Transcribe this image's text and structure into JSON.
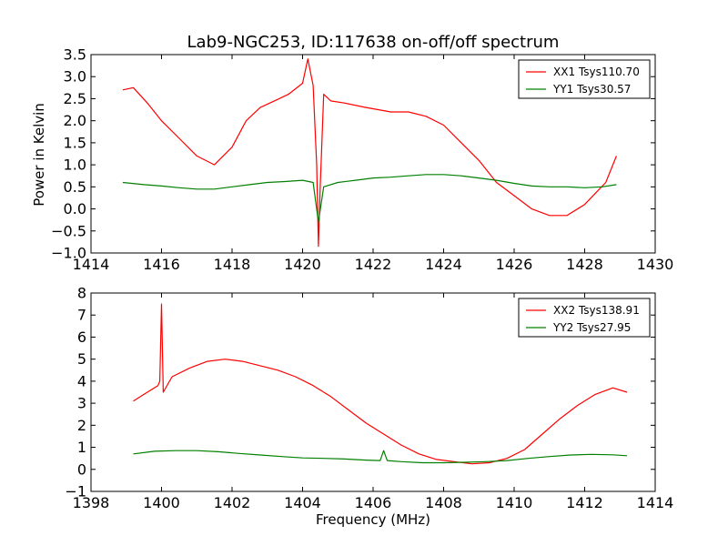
{
  "chart_data": [
    {
      "type": "line",
      "title": "Lab9-NGC253, ID:117638 on-off/off spectrum",
      "xlabel": "",
      "ylabel": "Power in Kelvin",
      "xlim": [
        1414,
        1430
      ],
      "ylim": [
        -1.0,
        3.5
      ],
      "xticks": [
        1414,
        1416,
        1418,
        1420,
        1422,
        1424,
        1426,
        1428,
        1430
      ],
      "xtick_labels": [
        "1414",
        "1416",
        "1418",
        "1420",
        "1422",
        "1424",
        "1426",
        "1428",
        "1430"
      ],
      "yticks": [
        -1.0,
        -0.5,
        0.0,
        0.5,
        1.0,
        1.5,
        2.0,
        2.5,
        3.0,
        3.5
      ],
      "ytick_labels": [
        "−1.0",
        "−0.5",
        "0.0",
        "0.5",
        "1.0",
        "1.5",
        "2.0",
        "2.5",
        "3.0",
        "3.5"
      ],
      "grid": false,
      "legend_position": "top-right",
      "series": [
        {
          "name": "XX1 Tsys110.70",
          "color": "#ff0000",
          "x": [
            1414.9,
            1415.2,
            1415.6,
            1416.0,
            1416.5,
            1417.0,
            1417.5,
            1418.0,
            1418.4,
            1418.8,
            1419.2,
            1419.6,
            1420.0,
            1420.15,
            1420.3,
            1420.4,
            1420.45,
            1420.5,
            1420.6,
            1420.8,
            1421.2,
            1421.8,
            1422.5,
            1423.0,
            1423.5,
            1424.0,
            1424.5,
            1425.0,
            1425.5,
            1426.0,
            1426.5,
            1427.0,
            1427.5,
            1428.0,
            1428.3,
            1428.6,
            1428.9
          ],
          "y": [
            2.7,
            2.75,
            2.4,
            2.0,
            1.6,
            1.2,
            1.0,
            1.4,
            2.0,
            2.3,
            2.45,
            2.6,
            2.85,
            3.4,
            2.8,
            1.0,
            -0.85,
            0.5,
            2.6,
            2.45,
            2.4,
            2.3,
            2.2,
            2.2,
            2.1,
            1.9,
            1.5,
            1.1,
            0.6,
            0.3,
            0.0,
            -0.15,
            -0.15,
            0.1,
            0.35,
            0.6,
            1.2
          ]
        },
        {
          "name": "YY1 Tsys30.57",
          "color": "#008000",
          "x": [
            1414.9,
            1415.5,
            1416.0,
            1416.5,
            1417.0,
            1417.5,
            1418.0,
            1418.5,
            1419.0,
            1419.5,
            1420.0,
            1420.3,
            1420.45,
            1420.6,
            1421.0,
            1421.5,
            1422.0,
            1422.5,
            1423.0,
            1423.5,
            1424.0,
            1424.5,
            1425.0,
            1425.5,
            1426.0,
            1426.5,
            1427.0,
            1427.5,
            1428.0,
            1428.5,
            1428.9
          ],
          "y": [
            0.6,
            0.55,
            0.52,
            0.48,
            0.45,
            0.45,
            0.5,
            0.55,
            0.6,
            0.62,
            0.65,
            0.6,
            -0.3,
            0.5,
            0.6,
            0.65,
            0.7,
            0.72,
            0.75,
            0.78,
            0.78,
            0.75,
            0.7,
            0.65,
            0.58,
            0.52,
            0.5,
            0.5,
            0.48,
            0.5,
            0.55
          ]
        }
      ]
    },
    {
      "type": "line",
      "title": "",
      "xlabel": "Frequency (MHz)",
      "ylabel": "",
      "xlim": [
        1398,
        1414
      ],
      "ylim": [
        -1,
        8
      ],
      "xticks": [
        1398,
        1400,
        1402,
        1404,
        1406,
        1408,
        1410,
        1412,
        1414
      ],
      "xtick_labels": [
        "1398",
        "1400",
        "1402",
        "1404",
        "1406",
        "1408",
        "1410",
        "1412",
        "1414"
      ],
      "yticks": [
        -1,
        0,
        1,
        2,
        3,
        4,
        5,
        6,
        7,
        8
      ],
      "ytick_labels": [
        "−1",
        "0",
        "1",
        "2",
        "3",
        "4",
        "5",
        "6",
        "7",
        "8"
      ],
      "grid": false,
      "legend_position": "top-right",
      "series": [
        {
          "name": "XX2 Tsys138.91",
          "color": "#ff0000",
          "x": [
            1399.2,
            1399.5,
            1399.9,
            1399.95,
            1400.0,
            1400.05,
            1400.3,
            1400.8,
            1401.3,
            1401.8,
            1402.3,
            1402.8,
            1403.3,
            1403.8,
            1404.3,
            1404.8,
            1405.3,
            1405.8,
            1406.3,
            1406.8,
            1407.3,
            1407.8,
            1408.3,
            1408.8,
            1409.3,
            1409.8,
            1410.3,
            1410.8,
            1411.3,
            1411.8,
            1412.3,
            1412.8,
            1413.2
          ],
          "y": [
            3.1,
            3.4,
            3.8,
            4.0,
            7.5,
            3.5,
            4.2,
            4.6,
            4.9,
            5.0,
            4.9,
            4.7,
            4.5,
            4.2,
            3.8,
            3.3,
            2.7,
            2.1,
            1.6,
            1.1,
            0.7,
            0.45,
            0.35,
            0.25,
            0.3,
            0.5,
            0.9,
            1.6,
            2.3,
            2.9,
            3.4,
            3.7,
            3.5
          ]
        },
        {
          "name": "YY2 Tsys27.95",
          "color": "#008000",
          "x": [
            1399.2,
            1399.8,
            1400.4,
            1401.0,
            1401.6,
            1402.2,
            1402.8,
            1403.4,
            1404.0,
            1404.6,
            1405.2,
            1405.8,
            1406.2,
            1406.3,
            1406.4,
            1406.8,
            1407.4,
            1408.0,
            1408.6,
            1409.2,
            1409.8,
            1410.4,
            1411.0,
            1411.6,
            1412.2,
            1412.8,
            1413.2
          ],
          "y": [
            0.7,
            0.82,
            0.85,
            0.85,
            0.8,
            0.72,
            0.65,
            0.58,
            0.52,
            0.5,
            0.47,
            0.42,
            0.4,
            0.85,
            0.4,
            0.35,
            0.3,
            0.3,
            0.32,
            0.35,
            0.4,
            0.5,
            0.58,
            0.65,
            0.68,
            0.66,
            0.62
          ]
        }
      ]
    }
  ]
}
